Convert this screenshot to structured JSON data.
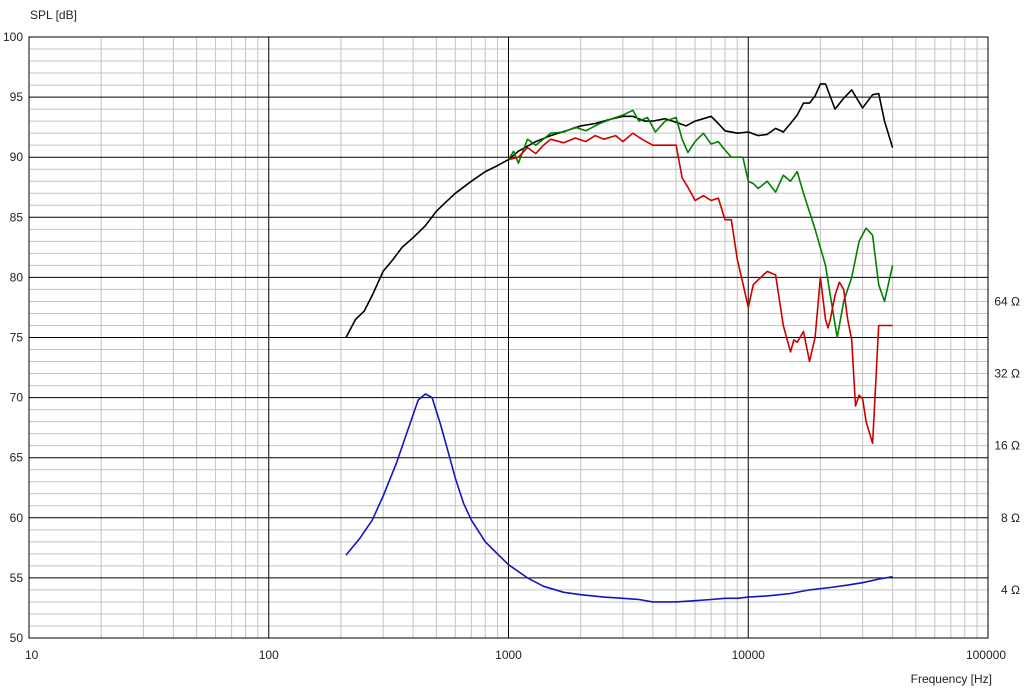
{
  "chart_data": {
    "type": "line",
    "ylabel": "SPL [dB]",
    "xlabel": "Frequency [Hz]",
    "x_scale": "log",
    "xlim": [
      10,
      100000
    ],
    "ylim": [
      50,
      100
    ],
    "grid": true,
    "x_ticks": [
      {
        "value": 10,
        "label": "10"
      },
      {
        "value": 100,
        "label": "100"
      },
      {
        "value": 1000,
        "label": "1000"
      },
      {
        "value": 10000,
        "label": "10000"
      },
      {
        "value": 100000,
        "label": "100000"
      }
    ],
    "y_ticks": [
      {
        "value": 100,
        "label": "100"
      },
      {
        "value": 95,
        "label": "95"
      },
      {
        "value": 90,
        "label": "90"
      },
      {
        "value": 85,
        "label": "85"
      },
      {
        "value": 80,
        "label": "80"
      },
      {
        "value": 75,
        "label": "75"
      },
      {
        "value": 70,
        "label": "70"
      },
      {
        "value": 65,
        "label": "65"
      },
      {
        "value": 60,
        "label": "60"
      },
      {
        "value": 55,
        "label": "55"
      },
      {
        "value": 50,
        "label": "50"
      }
    ],
    "y2_ticks": [
      {
        "at_db": 78,
        "label": "64 Ω"
      },
      {
        "at_db": 72,
        "label": "32 Ω"
      },
      {
        "at_db": 66,
        "label": "16 Ω"
      },
      {
        "at_db": 60,
        "label": "8 Ω"
      },
      {
        "at_db": 54,
        "label": "4 Ω"
      }
    ],
    "series": [
      {
        "color": "#000000",
        "x": [
          210,
          230,
          250,
          270,
          300,
          330,
          360,
          400,
          450,
          500,
          550,
          600,
          700,
          800,
          900,
          1000,
          1100,
          1300,
          1500,
          1800,
          2000,
          2300,
          2600,
          3000,
          3300,
          3700,
          4000,
          4500,
          5000,
          5500,
          6000,
          6500,
          7000,
          7500,
          8000,
          9000,
          10000,
          11000,
          12000,
          13000,
          14000,
          15000,
          16000,
          17000,
          18000,
          19000,
          20000,
          21000,
          23000,
          25000,
          27000,
          30000,
          33000,
          35000,
          37000,
          40000
        ],
        "y": [
          75.0,
          76.5,
          77.2,
          78.5,
          80.5,
          81.5,
          82.5,
          83.3,
          84.3,
          85.5,
          86.3,
          87.0,
          88.0,
          88.8,
          89.3,
          89.8,
          90.5,
          91.3,
          91.8,
          92.3,
          92.6,
          92.8,
          93.1,
          93.4,
          93.4,
          93.0,
          93.0,
          93.2,
          92.9,
          92.6,
          93.0,
          93.2,
          93.4,
          92.8,
          92.2,
          92.0,
          92.1,
          91.8,
          91.9,
          92.4,
          92.1,
          92.8,
          93.5,
          94.5,
          94.5,
          95.1,
          96.1,
          96.1,
          94.0,
          94.9,
          95.6,
          94.1,
          95.2,
          95.3,
          93.0,
          90.8
        ]
      },
      {
        "color": "#008000",
        "x": [
          1000,
          1050,
          1100,
          1200,
          1300,
          1500,
          1700,
          1900,
          2100,
          2400,
          2700,
          3000,
          3300,
          3500,
          3800,
          4100,
          4500,
          5000,
          5300,
          5600,
          6000,
          6500,
          7000,
          7500,
          8000,
          8500,
          9000,
          9500,
          10000,
          10500,
          11000,
          12000,
          13000,
          14000,
          15000,
          16000,
          17000,
          19000,
          21000,
          22000,
          23500,
          25000,
          27000,
          29000,
          31000,
          33000,
          35000,
          37000,
          40000
        ],
        "y": [
          89.8,
          90.5,
          89.5,
          91.5,
          91.0,
          92.0,
          92.1,
          92.5,
          92.2,
          92.8,
          93.2,
          93.5,
          93.9,
          93.0,
          93.3,
          92.1,
          93.0,
          93.3,
          91.5,
          90.4,
          91.3,
          92.0,
          91.1,
          91.3,
          90.6,
          90.0,
          90.0,
          90.0,
          88.0,
          87.8,
          87.4,
          88.0,
          87.1,
          88.5,
          88.0,
          88.8,
          87.0,
          84.0,
          81.0,
          78.5,
          75.0,
          78.0,
          80.0,
          83.0,
          84.1,
          83.5,
          79.4,
          78.0,
          81.0
        ]
      },
      {
        "color": "#cc0000",
        "x": [
          1000,
          1100,
          1200,
          1300,
          1400,
          1500,
          1700,
          1900,
          2100,
          2300,
          2500,
          2800,
          3000,
          3300,
          3600,
          4000,
          4500,
          5000,
          5300,
          5600,
          6000,
          6500,
          7000,
          7500,
          8000,
          8500,
          9000,
          9500,
          10000,
          10500,
          11000,
          12000,
          13000,
          14000,
          15000,
          15500,
          16000,
          17000,
          18000,
          19000,
          20000,
          21000,
          21500,
          22000,
          23000,
          24000,
          25000,
          26000,
          27000,
          28000,
          29000,
          30000,
          31000,
          33000,
          35000,
          37000,
          40000
        ],
        "y": [
          89.8,
          90.0,
          90.8,
          90.3,
          91.0,
          91.5,
          91.2,
          91.6,
          91.3,
          91.8,
          91.5,
          91.8,
          91.3,
          92.0,
          91.5,
          91.0,
          91.0,
          91.0,
          88.3,
          87.5,
          86.4,
          86.8,
          86.4,
          86.6,
          84.8,
          84.8,
          81.5,
          79.5,
          77.5,
          79.4,
          79.8,
          80.5,
          80.2,
          76.0,
          73.8,
          74.8,
          74.6,
          75.5,
          73.0,
          75.0,
          80.0,
          76.5,
          75.8,
          76.5,
          78.5,
          79.6,
          79.0,
          76.5,
          74.8,
          69.3,
          70.2,
          69.9,
          68.0,
          66.2,
          76.0,
          76.0,
          76.0
        ]
      },
      {
        "color": "#1515c0",
        "x": [
          210,
          240,
          270,
          300,
          340,
          380,
          420,
          450,
          480,
          520,
          560,
          600,
          650,
          700,
          800,
          900,
          1000,
          1200,
          1400,
          1700,
          2000,
          2500,
          3000,
          3500,
          4000,
          5000,
          6000,
          7000,
          8000,
          9000,
          10000,
          12000,
          15000,
          18000,
          22000,
          26000,
          30000,
          35000,
          40000
        ],
        "y": [
          56.9,
          58.3,
          59.8,
          61.8,
          64.5,
          67.3,
          69.8,
          70.3,
          70.0,
          67.8,
          65.5,
          63.3,
          61.2,
          59.8,
          58.0,
          57.0,
          56.1,
          55.0,
          54.3,
          53.8,
          53.6,
          53.4,
          53.3,
          53.2,
          53.0,
          53.0,
          53.1,
          53.2,
          53.3,
          53.3,
          53.4,
          53.5,
          53.7,
          54.0,
          54.2,
          54.4,
          54.6,
          54.9,
          55.1
        ]
      }
    ]
  }
}
